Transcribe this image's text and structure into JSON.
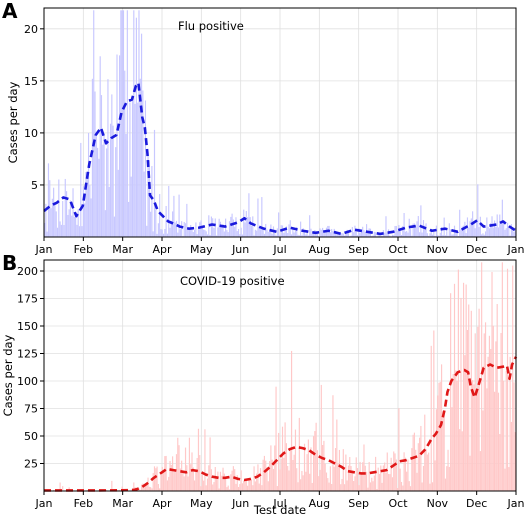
{
  "chart_data": [
    {
      "type": "bar",
      "panel_label": "A",
      "annotation": "Flu positive",
      "xlabel": "",
      "ylabel": "Cases per day",
      "x_ticks": [
        "Jan",
        "Feb",
        "Mar",
        "Apr",
        "May",
        "Jun",
        "Jul",
        "Aug",
        "Sep",
        "Oct",
        "Nov",
        "Dec",
        "Jan"
      ],
      "y_ticks": [
        5,
        10,
        15,
        20
      ],
      "ylim": [
        0,
        22
      ],
      "grid": true,
      "bar_color": "#c8c8ff",
      "line_color": "#1a1adc",
      "smoothed_points": [
        [
          0,
          2.5
        ],
        [
          5,
          3
        ],
        [
          10,
          3.3
        ],
        [
          15,
          3.8
        ],
        [
          20,
          3.6
        ],
        [
          25,
          2
        ],
        [
          30,
          3
        ],
        [
          35,
          7
        ],
        [
          40,
          9.8
        ],
        [
          44,
          10.5
        ],
        [
          48,
          9
        ],
        [
          52,
          9.5
        ],
        [
          56,
          9.8
        ],
        [
          60,
          12
        ],
        [
          64,
          13
        ],
        [
          68,
          13.2
        ],
        [
          71,
          14.5
        ],
        [
          73,
          14.8
        ],
        [
          76,
          11.5
        ],
        [
          78,
          10.5
        ],
        [
          80,
          8
        ],
        [
          82,
          4
        ],
        [
          85,
          3.5
        ],
        [
          88,
          2.5
        ],
        [
          92,
          2
        ],
        [
          96,
          1.5
        ],
        [
          100,
          1.3
        ],
        [
          105,
          1
        ],
        [
          112,
          0.8
        ],
        [
          120,
          0.9
        ],
        [
          130,
          1.2
        ],
        [
          140,
          1
        ],
        [
          150,
          1.4
        ],
        [
          155,
          1.8
        ],
        [
          160,
          1.3
        ],
        [
          170,
          0.8
        ],
        [
          180,
          0.5
        ],
        [
          190,
          0.9
        ],
        [
          200,
          0.6
        ],
        [
          210,
          0.4
        ],
        [
          220,
          0.6
        ],
        [
          230,
          0.3
        ],
        [
          240,
          0.7
        ],
        [
          250,
          0.5
        ],
        [
          260,
          0.3
        ],
        [
          270,
          0.5
        ],
        [
          280,
          0.9
        ],
        [
          290,
          1.1
        ],
        [
          300,
          0.6
        ],
        [
          310,
          0.8
        ],
        [
          320,
          0.5
        ],
        [
          330,
          1.2
        ],
        [
          335,
          1.6
        ],
        [
          340,
          1
        ],
        [
          350,
          1.2
        ],
        [
          355,
          1.5
        ],
        [
          360,
          1
        ],
        [
          365,
          0.6
        ]
      ]
    },
    {
      "type": "bar",
      "panel_label": "B",
      "annotation": "COVID-19 positive",
      "xlabel": "Test date",
      "ylabel": "Cases per day",
      "x_ticks": [
        "Jan",
        "Feb",
        "Mar",
        "Apr",
        "May",
        "Jun",
        "Jul",
        "Aug",
        "Sep",
        "Oct",
        "Nov",
        "Dec",
        "Jan"
      ],
      "y_ticks": [
        25,
        50,
        75,
        100,
        125,
        150,
        175,
        200
      ],
      "ylim": [
        0,
        210
      ],
      "grid": true,
      "bar_color": "#ffc8c8",
      "line_color": "#e01818",
      "smoothed_points": [
        [
          0,
          0.5
        ],
        [
          30,
          0.5
        ],
        [
          60,
          0.6
        ],
        [
          70,
          1
        ],
        [
          75,
          3
        ],
        [
          80,
          7
        ],
        [
          85,
          12
        ],
        [
          90,
          16
        ],
        [
          95,
          20
        ],
        [
          100,
          19
        ],
        [
          105,
          18
        ],
        [
          110,
          17
        ],
        [
          115,
          19
        ],
        [
          120,
          18
        ],
        [
          125,
          15
        ],
        [
          130,
          13
        ],
        [
          135,
          12
        ],
        [
          140,
          12
        ],
        [
          145,
          13
        ],
        [
          150,
          11
        ],
        [
          155,
          10
        ],
        [
          160,
          11
        ],
        [
          165,
          13
        ],
        [
          170,
          17
        ],
        [
          175,
          22
        ],
        [
          180,
          28
        ],
        [
          185,
          34
        ],
        [
          190,
          38
        ],
        [
          195,
          40
        ],
        [
          200,
          39
        ],
        [
          205,
          37
        ],
        [
          210,
          33
        ],
        [
          215,
          30
        ],
        [
          220,
          28
        ],
        [
          225,
          25
        ],
        [
          230,
          22
        ],
        [
          235,
          18
        ],
        [
          240,
          17
        ],
        [
          245,
          16
        ],
        [
          250,
          16
        ],
        [
          255,
          17
        ],
        [
          260,
          18
        ],
        [
          265,
          19
        ],
        [
          270,
          23
        ],
        [
          275,
          27
        ],
        [
          280,
          28
        ],
        [
          285,
          30
        ],
        [
          290,
          32
        ],
        [
          295,
          38
        ],
        [
          300,
          48
        ],
        [
          303,
          52
        ],
        [
          307,
          60
        ],
        [
          310,
          75
        ],
        [
          312,
          90
        ],
        [
          315,
          100
        ],
        [
          320,
          108
        ],
        [
          325,
          110
        ],
        [
          328,
          108
        ],
        [
          330,
          95
        ],
        [
          333,
          85
        ],
        [
          336,
          96
        ],
        [
          340,
          112
        ],
        [
          345,
          115
        ],
        [
          350,
          112
        ],
        [
          355,
          113
        ],
        [
          358,
          114
        ],
        [
          360,
          102
        ],
        [
          362,
          115
        ],
        [
          365,
          122
        ]
      ]
    }
  ]
}
